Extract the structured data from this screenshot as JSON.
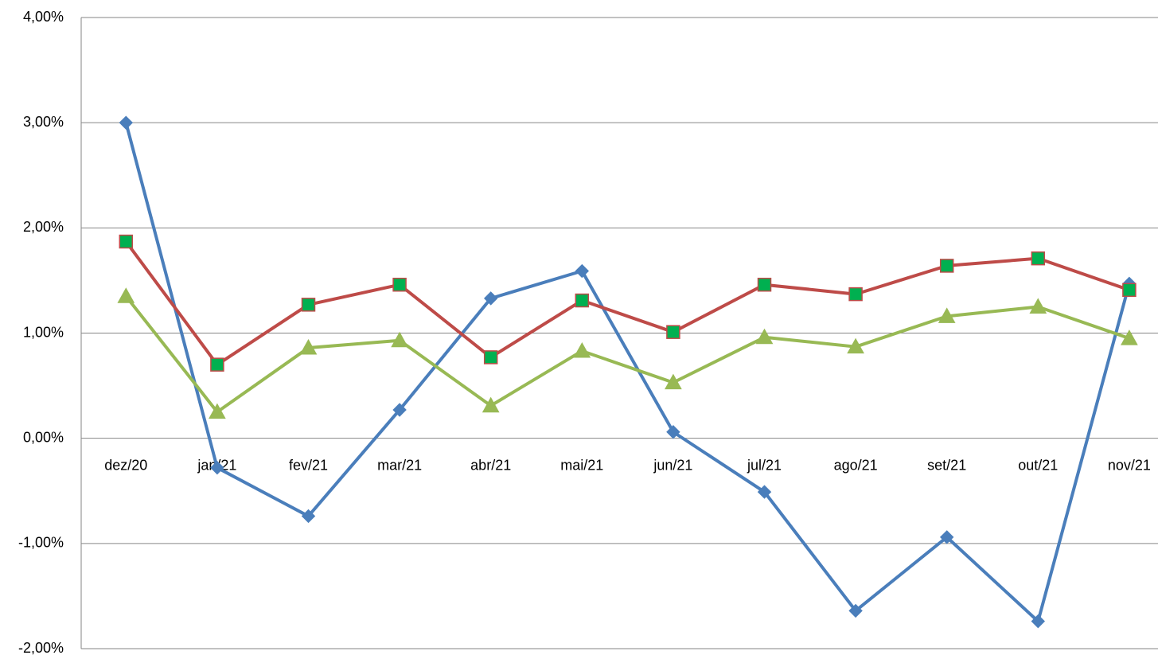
{
  "chart_data": {
    "type": "line",
    "categories": [
      "dez/20",
      "jan/21",
      "fev/21",
      "mar/21",
      "abr/21",
      "mai/21",
      "jun/21",
      "jul/21",
      "ago/21",
      "set/21",
      "out/21",
      "nov/21"
    ],
    "series": [
      {
        "color": "#4a7ebb",
        "marker": "diamond",
        "marker_color": "#4a7ebb",
        "values": [
          3.0,
          -0.28,
          -0.74,
          0.27,
          1.33,
          1.59,
          0.06,
          -0.51,
          -1.64,
          -0.94,
          -1.74,
          1.47
        ]
      },
      {
        "color": "#be4b48",
        "marker": "square",
        "marker_color": "#00b050",
        "values": [
          1.87,
          0.7,
          1.27,
          1.46,
          0.77,
          1.31,
          1.01,
          1.46,
          1.37,
          1.64,
          1.71,
          1.41
        ]
      },
      {
        "color": "#98b954",
        "marker": "triangle",
        "marker_color": "#98b954",
        "values": [
          1.35,
          0.25,
          0.86,
          0.93,
          0.31,
          0.83,
          0.53,
          0.96,
          0.87,
          1.16,
          1.25,
          0.95
        ]
      }
    ],
    "ylim": [
      -2,
      4
    ],
    "yticks": [
      {
        "value": -2,
        "label": "-2,00%"
      },
      {
        "value": -1,
        "label": "-1,00%"
      },
      {
        "value": 0,
        "label": "0,00%"
      },
      {
        "value": 1,
        "label": "1,00%"
      },
      {
        "value": 2,
        "label": "2,00%"
      },
      {
        "value": 3,
        "label": "3,00%"
      },
      {
        "value": 4,
        "label": "4,00%"
      }
    ],
    "grid": true
  }
}
